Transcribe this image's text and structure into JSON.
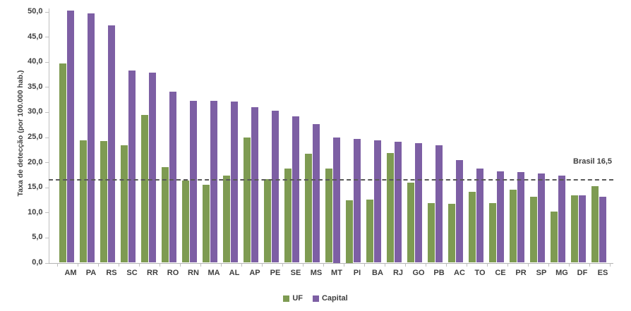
{
  "chart_data": {
    "type": "bar",
    "title": "",
    "xlabel": "",
    "ylabel": "Taxa de detecção (por 100.000 hab.)",
    "ylim": [
      0,
      50
    ],
    "ytick_step": 5,
    "y_tick_labels": [
      "0,0",
      "5,0",
      "10,0",
      "15,0",
      "20,0",
      "25,0",
      "30,0",
      "35,0",
      "40,0",
      "45,0",
      "50,0"
    ],
    "grid": false,
    "legend_position": "bottom",
    "categories": [
      "AM",
      "PA",
      "RS",
      "SC",
      "RR",
      "RO",
      "RN",
      "MA",
      "AL",
      "AP",
      "PE",
      "SE",
      "MS",
      "MT",
      "PI",
      "BA",
      "RJ",
      "GO",
      "PB",
      "AC",
      "TO",
      "CE",
      "PR",
      "SP",
      "MG",
      "DF",
      "ES"
    ],
    "series": [
      {
        "name": "UF",
        "color": "#7e9b52",
        "values": [
          39.7,
          24.3,
          24.2,
          23.4,
          29.4,
          19.0,
          16.3,
          15.5,
          17.4,
          24.9,
          16.6,
          18.7,
          21.7,
          18.7,
          12.5,
          12.6,
          21.9,
          15.9,
          11.8,
          11.7,
          14.1,
          11.8,
          14.5,
          13.2,
          10.2,
          13.4,
          15.3
        ]
      },
      {
        "name": "Capital",
        "color": "#7d5fa4",
        "values": [
          50.2,
          49.7,
          47.2,
          38.3,
          37.9,
          34.1,
          32.3,
          32.3,
          32.1,
          30.9,
          30.2,
          29.1,
          27.6,
          25.0,
          24.6,
          24.3,
          24.1,
          23.8,
          23.4,
          20.4,
          18.7,
          18.2,
          18.1,
          17.8,
          17.3,
          13.4,
          13.2
        ]
      }
    ],
    "reference_line": {
      "value": 16.5,
      "label": "Brasil 16,5"
    }
  }
}
